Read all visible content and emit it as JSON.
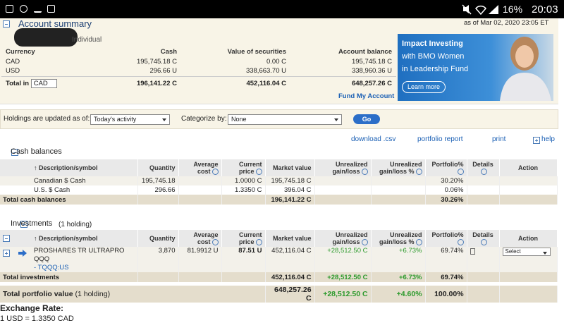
{
  "status_bar": {
    "battery": "16%",
    "time": "20:03"
  },
  "account_summary": {
    "title": "Account summary",
    "account_type": "Individual",
    "as_of": "as of Mar 02, 2020 23:05 ET",
    "headers": [
      "Currency",
      "Cash",
      "Value of securities",
      "Account balance"
    ],
    "rows": [
      [
        "CAD",
        "195,745.18 C",
        "0.00 C",
        "195,745.18 C"
      ],
      [
        "USD",
        "296.66 U",
        "338,663.70 U",
        "338,960.36 U"
      ]
    ],
    "total": {
      "label": "Total in",
      "currency": "CAD",
      "cash": "196,141.22 C",
      "securities": "452,116.04 C",
      "balance": "648,257.26 C"
    },
    "fund_link": "Fund My Account"
  },
  "ad": {
    "lines": [
      "Impact Investing",
      "with BMO Women",
      "in Leadership Fund"
    ],
    "button": "Learn more"
  },
  "controls": {
    "updated_label": "Holdings are updated as of:",
    "updated_value": "Today's activity",
    "categorize_label": "Categorize by:",
    "categorize_value": "None",
    "go": "Go"
  },
  "links": [
    "download .csv",
    "portfolio report",
    "print",
    "help"
  ],
  "headers": [
    "↑ Description/symbol",
    "Quantity",
    "Average cost",
    "Current price",
    "Market value",
    "Unrealized gain/loss",
    "Unrealized gain/loss %",
    "Portfolio%",
    "Details",
    "Action"
  ],
  "cash_balances": {
    "title": "Cash balances",
    "rows": [
      {
        "description": "Canadian $ Cash",
        "quantity": "195,745.18",
        "current_price": "1.0000 C",
        "market_value": "195,745.18 C",
        "portfolio": "30.20%"
      },
      {
        "description": "U.S. $ Cash",
        "quantity": "296.66",
        "current_price": "1.3350 C",
        "market_value": "396.04 C",
        "portfolio": "0.06%"
      }
    ],
    "total": {
      "label": "Total cash balances",
      "market_value": "196,141.22 C",
      "portfolio": "30.26%"
    }
  },
  "investments": {
    "title": "Investments",
    "count": "(1 holding)",
    "rows": [
      {
        "description": "PROSHARES TR ULTRAPRO QQQ",
        "symbol": "- TQQQ:US",
        "quantity": "3,870",
        "average_cost": "81.9912 U",
        "current_price": "87.51 U",
        "market_value": "452,116.04 C",
        "gain": "+28,512.50 C",
        "gain_pct": "+6.73%",
        "portfolio": "69.74%",
        "action": "Select"
      }
    ],
    "total": {
      "label": "Total investments",
      "market_value": "452,116.04 C",
      "gain": "+28,512.50 C",
      "gain_pct": "+6.73%",
      "portfolio": "69.74%"
    }
  },
  "total_portfolio": {
    "label": "Total portfolio value",
    "count": "(1 holding)",
    "market_value": "648,257.26 C",
    "gain": "+28,512.50 C",
    "gain_pct": "+4.60%",
    "portfolio": "100.00%"
  },
  "exchange_rate": {
    "title": "Exchange Rate:",
    "line": "1 USD = 1.3350 CAD"
  }
}
